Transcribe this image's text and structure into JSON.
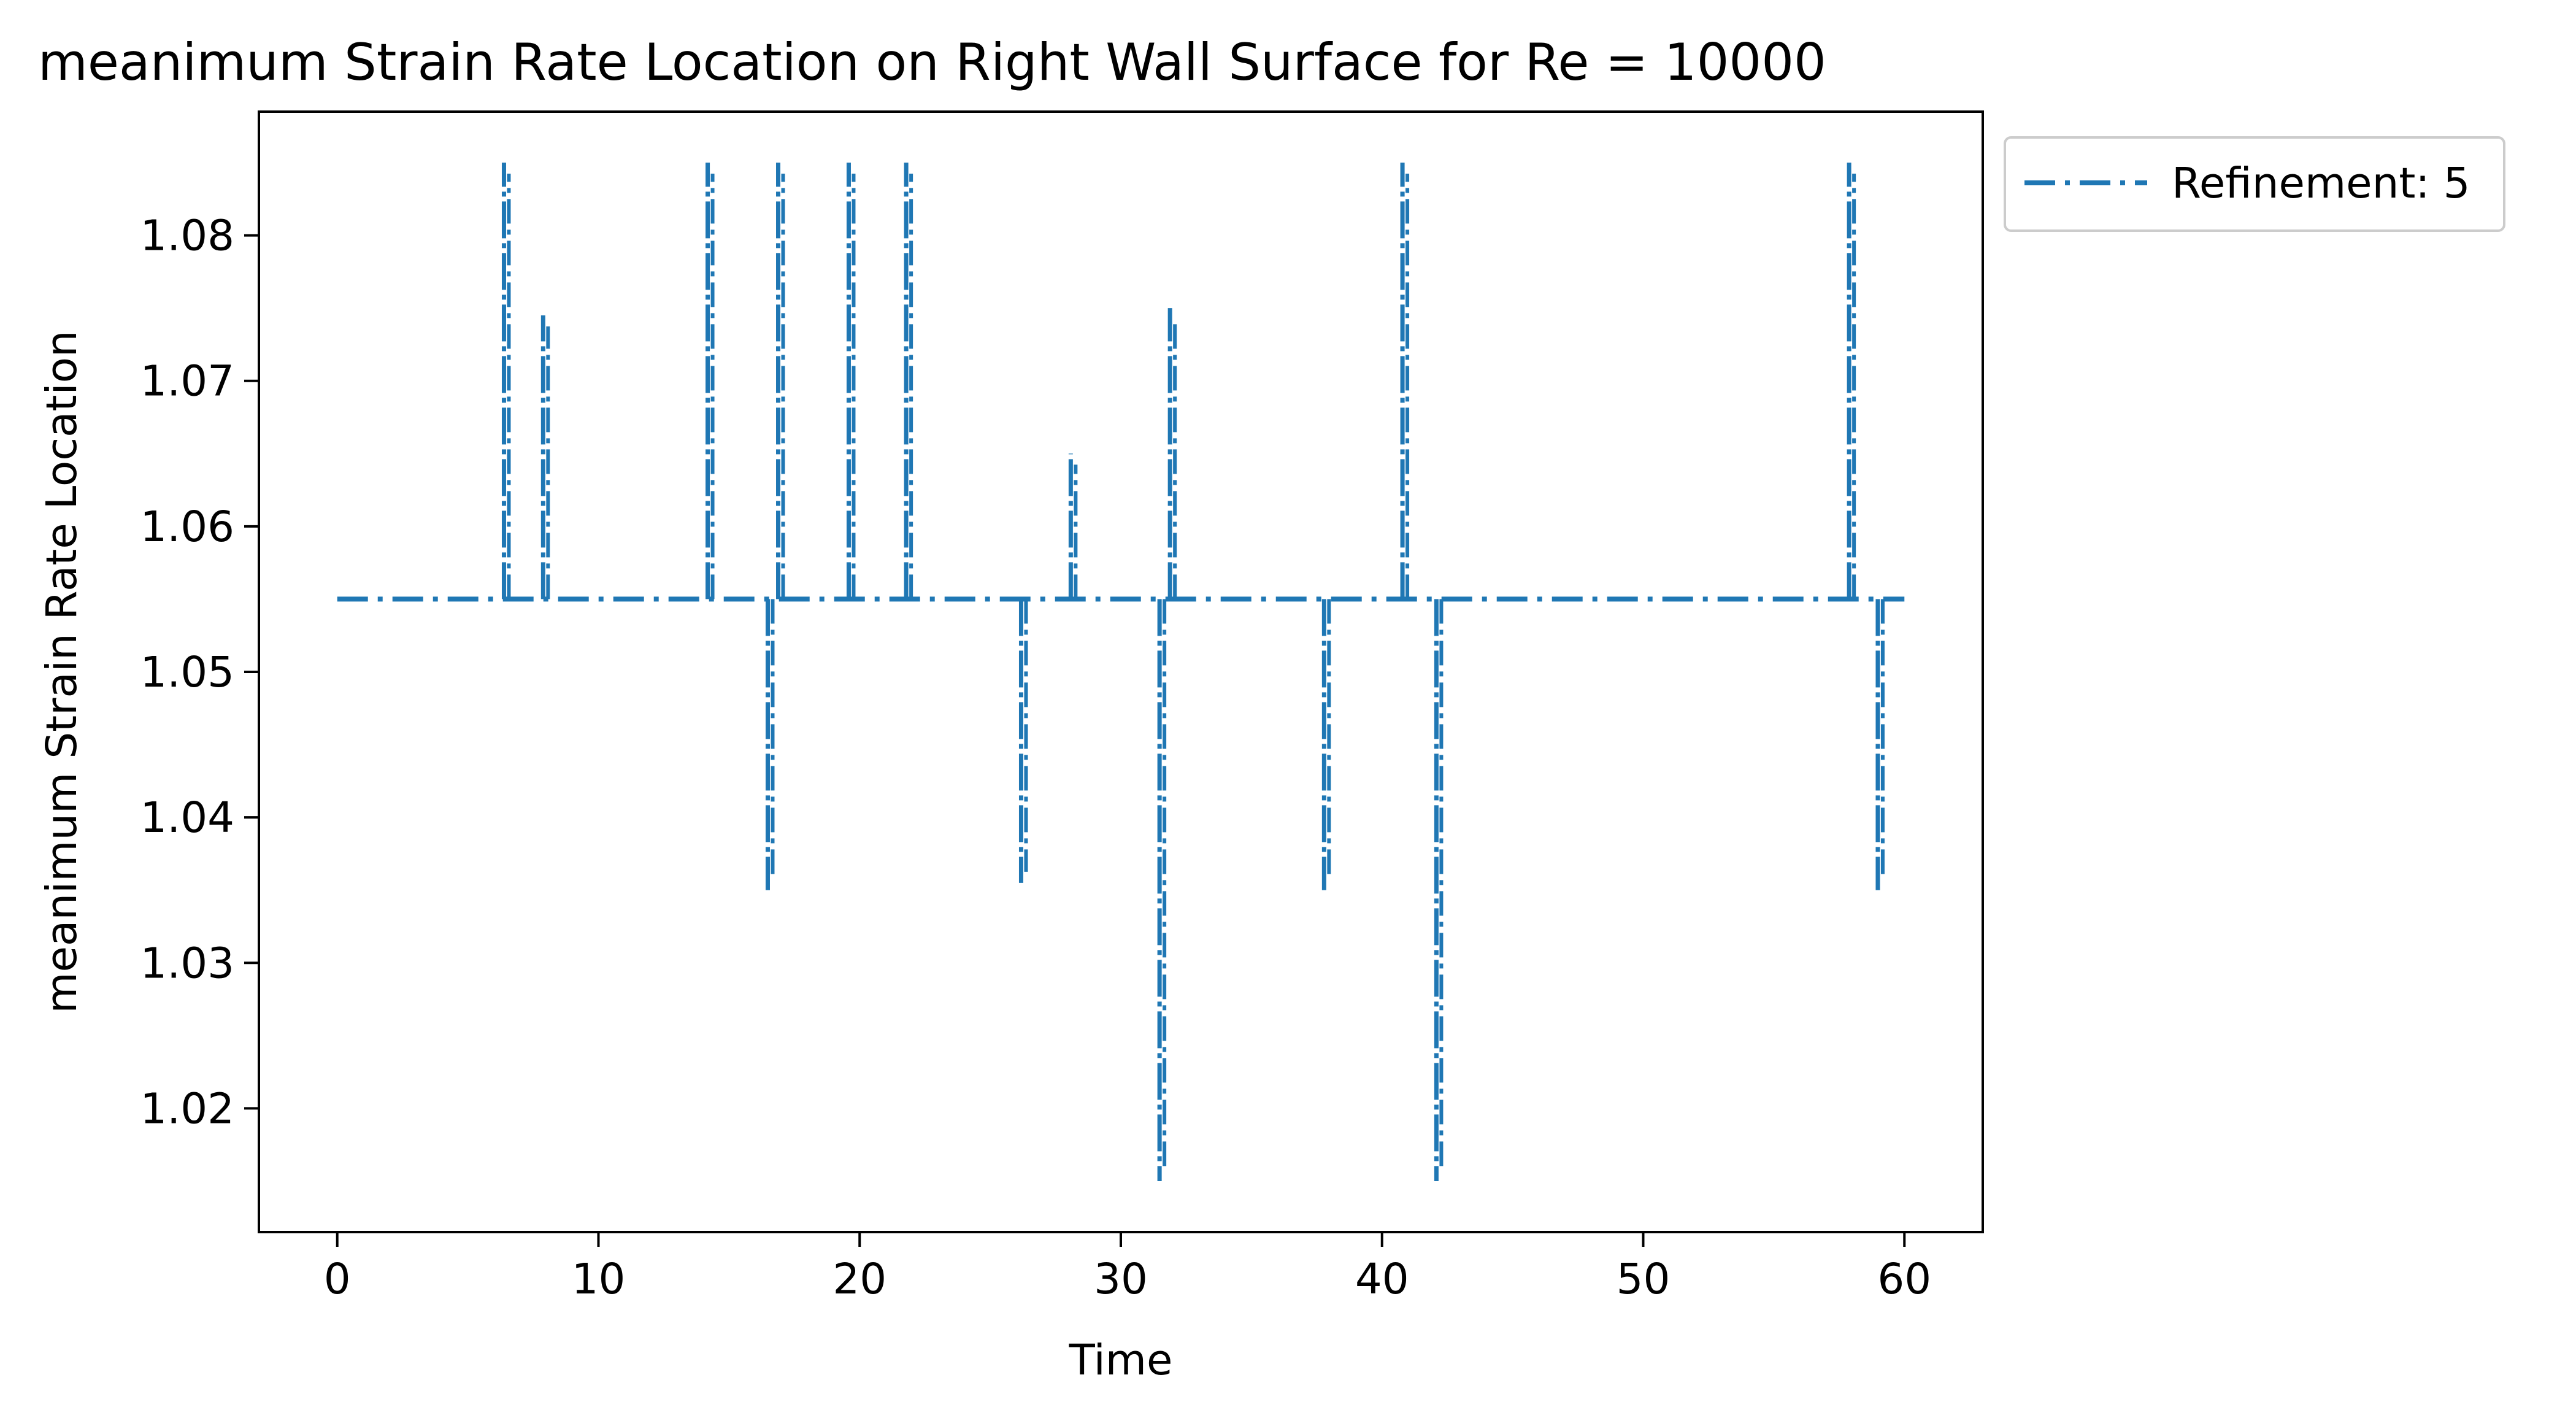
{
  "chart_data": {
    "type": "line",
    "title": "meanimum Strain Rate Location on Right Wall Surface for Re = 10000",
    "xlabel": "Time",
    "ylabel": "meanimum Strain Rate Location",
    "xlim": [
      -3,
      63
    ],
    "ylim": [
      1.0115,
      1.0885
    ],
    "xticks": [
      0,
      10,
      20,
      30,
      40,
      50,
      60
    ],
    "yticks": [
      1.02,
      1.03,
      1.04,
      1.05,
      1.06,
      1.07,
      1.08
    ],
    "ytick_labels": [
      "1.02",
      "1.03",
      "1.04",
      "1.05",
      "1.06",
      "1.07",
      "1.08"
    ],
    "grid": false,
    "legend_position": "outside-top-right",
    "series": [
      {
        "name": "Refinement: 5",
        "color": "#1f77b4",
        "linestyle": "dashdot",
        "baseline": 1.055,
        "x_range": [
          0,
          60
        ],
        "spikes": [
          {
            "x": 6.5,
            "y": 1.085
          },
          {
            "x": 8.0,
            "y": 1.0745
          },
          {
            "x": 14.3,
            "y": 1.085
          },
          {
            "x": 16.6,
            "y": 1.035
          },
          {
            "x": 17.0,
            "y": 1.085
          },
          {
            "x": 19.7,
            "y": 1.085
          },
          {
            "x": 21.9,
            "y": 1.085
          },
          {
            "x": 26.3,
            "y": 1.0355
          },
          {
            "x": 28.2,
            "y": 1.065
          },
          {
            "x": 31.6,
            "y": 1.015
          },
          {
            "x": 32.0,
            "y": 1.075
          },
          {
            "x": 37.9,
            "y": 1.035
          },
          {
            "x": 40.9,
            "y": 1.085
          },
          {
            "x": 42.2,
            "y": 1.015
          },
          {
            "x": 58.0,
            "y": 1.085
          },
          {
            "x": 59.1,
            "y": 1.035
          }
        ]
      }
    ]
  }
}
